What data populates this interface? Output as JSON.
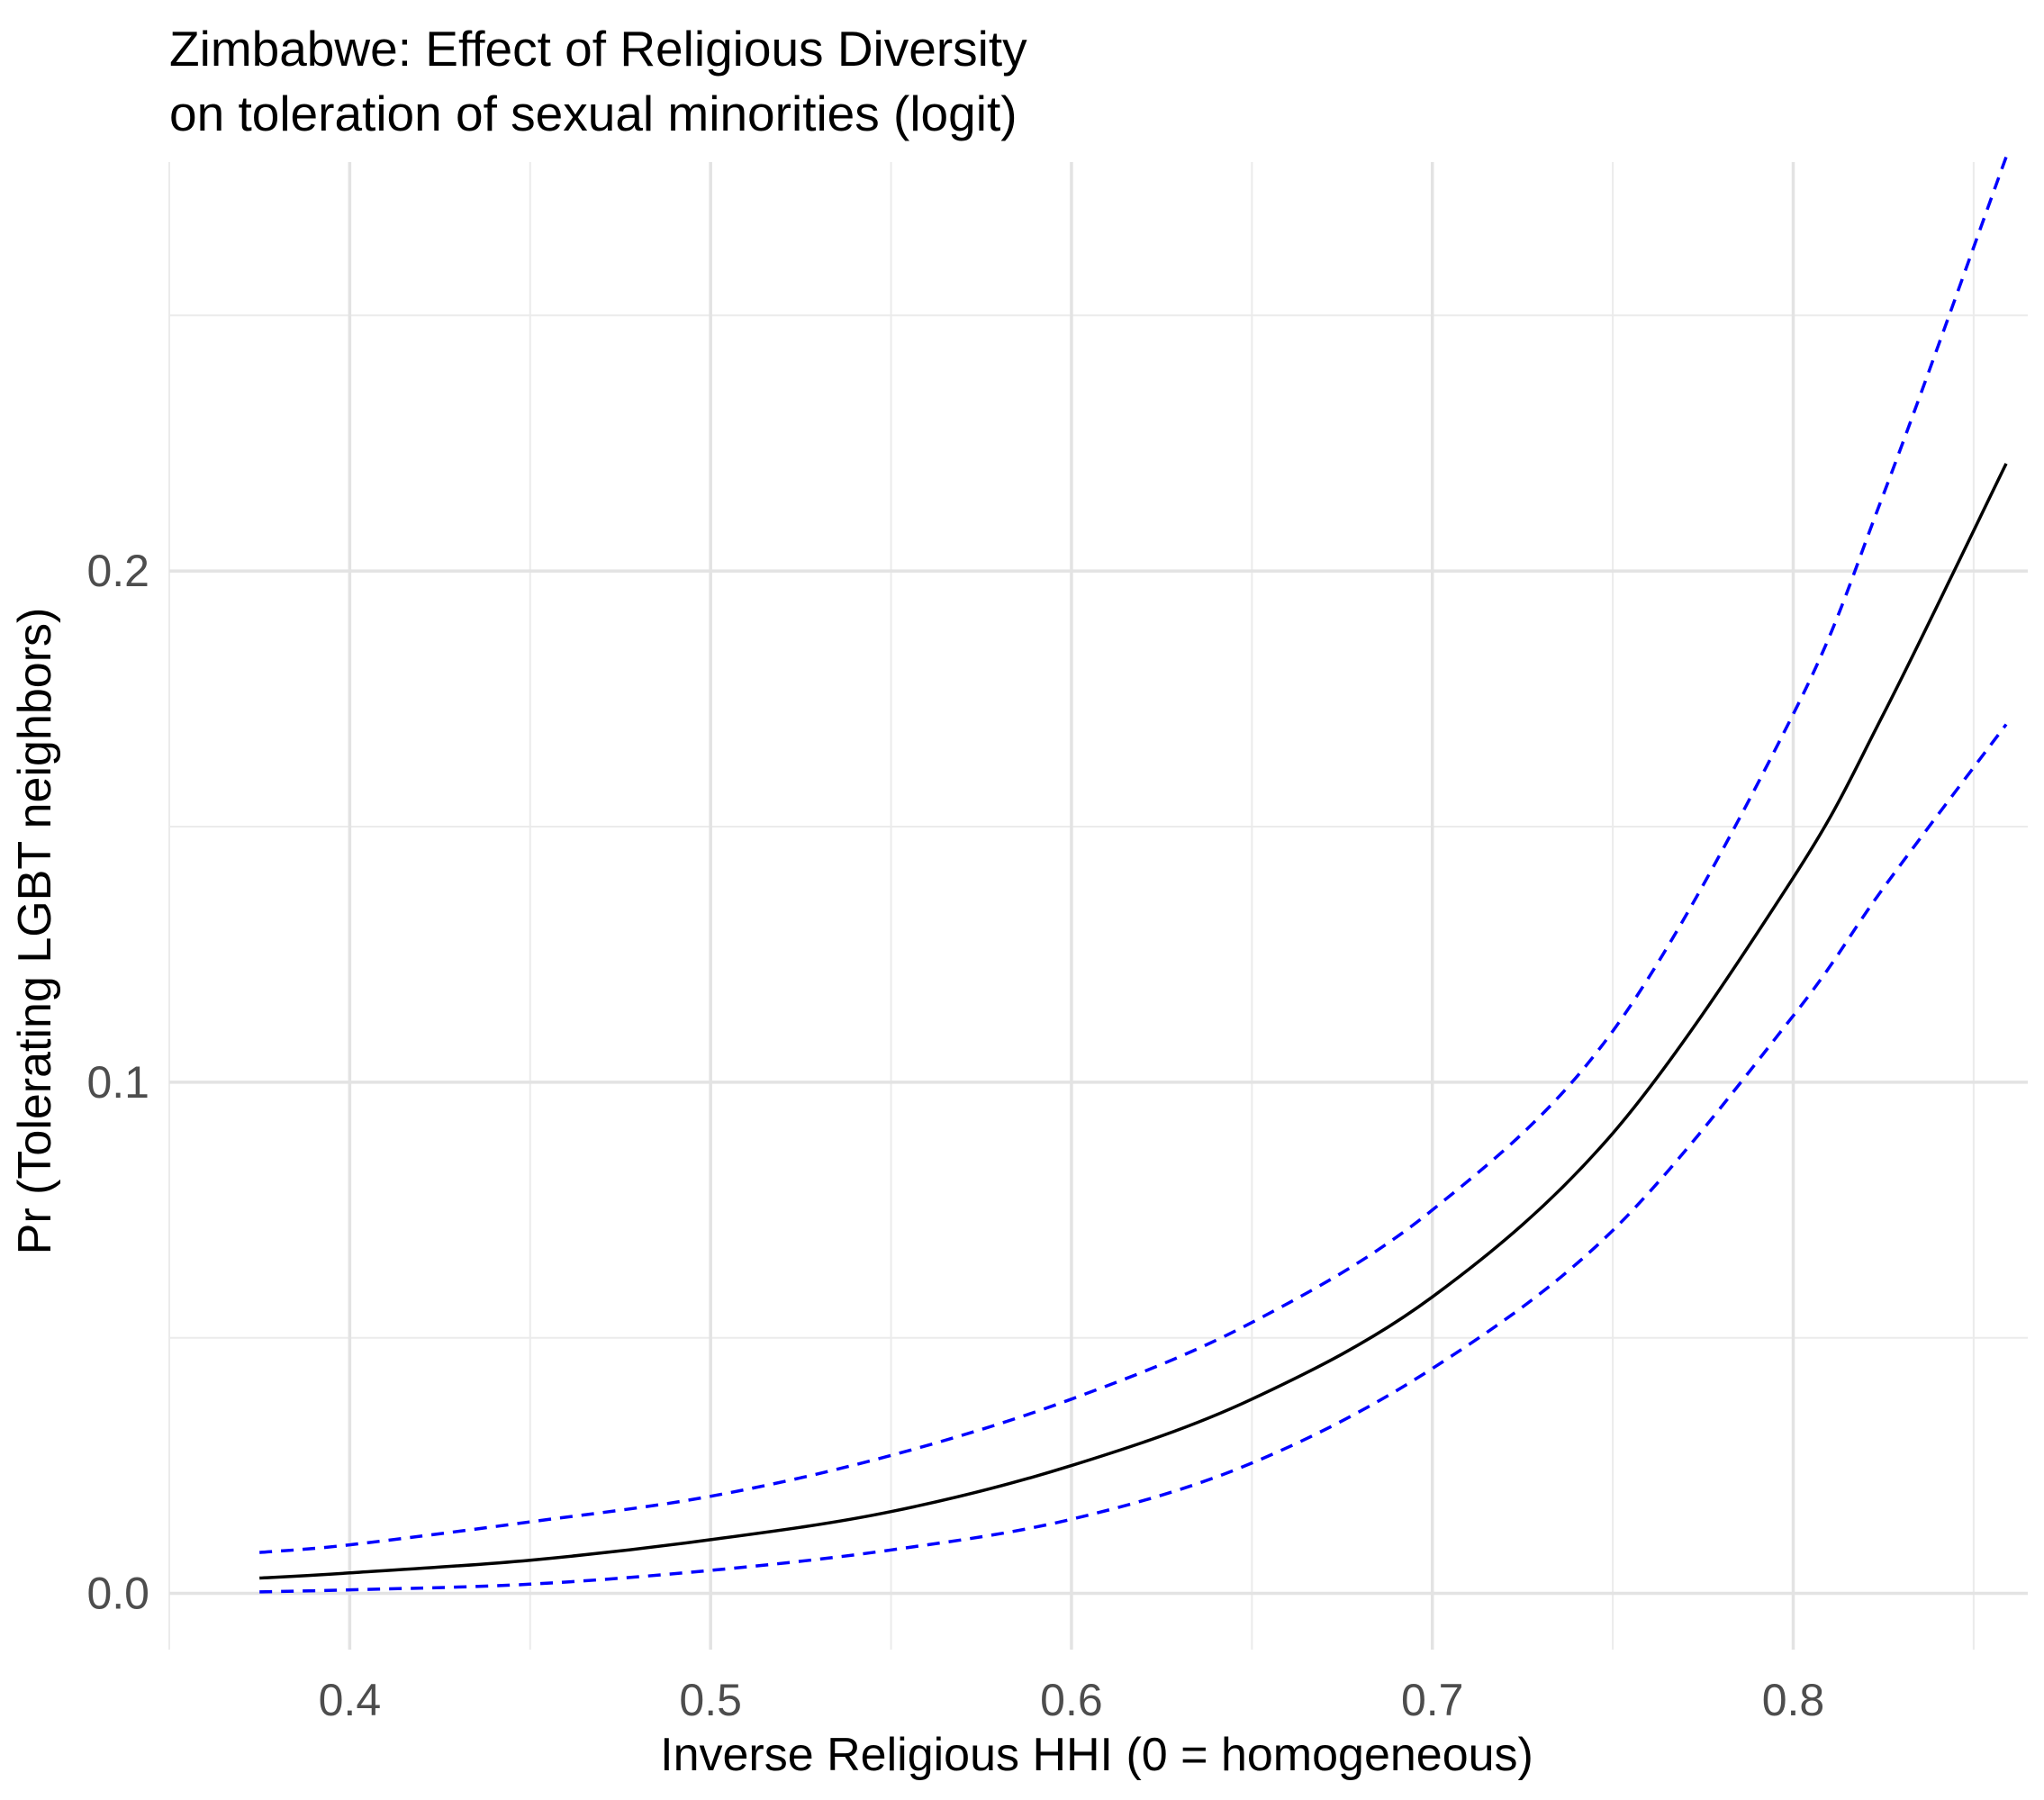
{
  "chart_data": {
    "type": "line",
    "title": "Zimbabwe: Effect of Religious Diversity",
    "subtitle": "on toleration of sexual minorities (logit)",
    "xlabel": "Inverse Religious HHI (0 = homogeneous)",
    "ylabel": "Pr (Tolerating LGBT neighbors)",
    "xlim": [
      0.35,
      0.865
    ],
    "ylim": [
      -0.011,
      0.28
    ],
    "x_ticks": [
      0.4,
      0.5,
      0.6,
      0.7,
      0.8
    ],
    "x_tick_labels": [
      "0.4",
      "0.5",
      "0.6",
      "0.7",
      "0.8"
    ],
    "y_ticks": [
      0.0,
      0.1,
      0.2
    ],
    "y_tick_labels": [
      "0.0",
      "0.1",
      "0.2"
    ],
    "grid": true,
    "series": [
      {
        "color": "#000000",
        "dash": "solid",
        "x": [
          0.375,
          0.4,
          0.45,
          0.5,
          0.55,
          0.6,
          0.65,
          0.7,
          0.75,
          0.8,
          0.825,
          0.859
        ],
        "y": [
          0.003,
          0.004,
          0.0065,
          0.0105,
          0.016,
          0.025,
          0.038,
          0.058,
          0.09,
          0.14,
          0.172,
          0.221
        ]
      },
      {
        "color": "#0000ff",
        "dash": "dashed",
        "x": [
          0.375,
          0.4,
          0.45,
          0.5,
          0.55,
          0.6,
          0.65,
          0.7,
          0.75,
          0.8,
          0.825,
          0.859
        ],
        "y": [
          0.008,
          0.0095,
          0.014,
          0.019,
          0.027,
          0.038,
          0.053,
          0.075,
          0.11,
          0.172,
          0.215,
          0.281
        ]
      },
      {
        "color": "#0000ff",
        "dash": "dashed",
        "x": [
          0.375,
          0.4,
          0.45,
          0.5,
          0.55,
          0.6,
          0.65,
          0.7,
          0.75,
          0.8,
          0.825,
          0.859
        ],
        "y": [
          0.0003,
          0.0007,
          0.0018,
          0.0045,
          0.0085,
          0.0145,
          0.0255,
          0.044,
          0.071,
          0.113,
          0.138,
          0.17
        ]
      }
    ]
  }
}
